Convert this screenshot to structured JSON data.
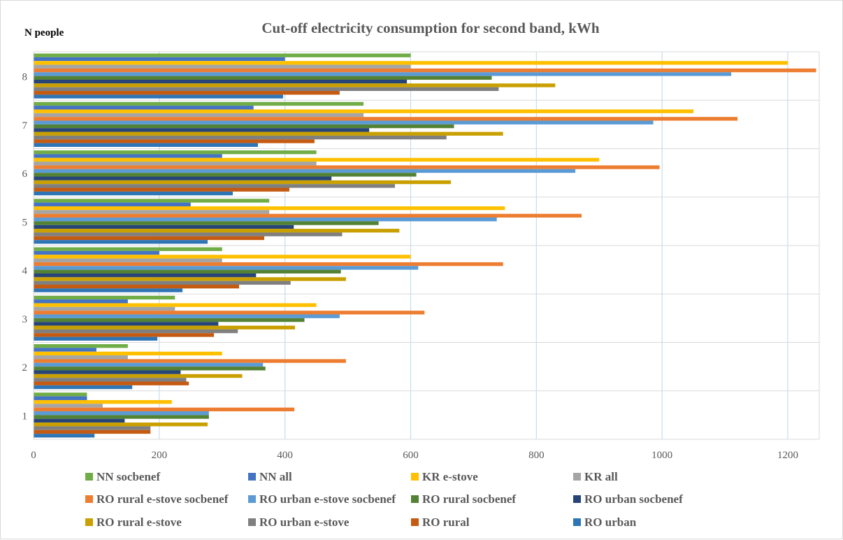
{
  "chart_data": {
    "type": "bar",
    "orientation": "horizontal",
    "title": "Cut-off electricity consumption for second band, kWh",
    "ylabel": "N people",
    "xlabel": "",
    "xlim": [
      0,
      1250
    ],
    "x_ticks": [
      0,
      200,
      400,
      600,
      800,
      1000,
      1200
    ],
    "categories": [
      "1",
      "2",
      "3",
      "4",
      "5",
      "6",
      "7",
      "8"
    ],
    "grid": "vertical",
    "legend_position": "bottom",
    "series": [
      {
        "name": "NN socbenef",
        "color": "#70ad47",
        "values": [
          85,
          150,
          225,
          300,
          375,
          450,
          525,
          600
        ]
      },
      {
        "name": "NN all",
        "color": "#4472c4",
        "values": [
          85,
          100,
          150,
          200,
          250,
          300,
          350,
          400
        ]
      },
      {
        "name": "KR e-stove",
        "color": "#ffc000",
        "values": [
          220,
          300,
          450,
          600,
          750,
          900,
          1050,
          1200
        ]
      },
      {
        "name": "KR all",
        "color": "#a5a5a5",
        "values": [
          110,
          150,
          225,
          300,
          375,
          450,
          525,
          600
        ]
      },
      {
        "name": "RO rural e-stove socbenef",
        "color": "#ed7d31",
        "values": [
          415,
          497,
          622,
          747,
          872,
          996,
          1120,
          1245
        ]
      },
      {
        "name": "RO urban e-stove socbenef",
        "color": "#5b9bd5",
        "values": [
          279,
          365,
          487,
          612,
          737,
          862,
          986,
          1110
        ]
      },
      {
        "name": "RO rural socbenef",
        "color": "#548235",
        "values": [
          279,
          369,
          431,
          489,
          549,
          609,
          669,
          729
        ]
      },
      {
        "name": "RO urban socbenef",
        "color": "#264478",
        "values": [
          145,
          234,
          294,
          354,
          414,
          474,
          534,
          594
        ]
      },
      {
        "name": "RO rural e-stove",
        "color": "#c9a000",
        "values": [
          277,
          332,
          416,
          497,
          582,
          664,
          747,
          830
        ]
      },
      {
        "name": "RO urban e-stove",
        "color": "#7f7f7f",
        "values": [
          186,
          243,
          325,
          409,
          491,
          575,
          657,
          740
        ]
      },
      {
        "name": "RO rural",
        "color": "#c55a11",
        "values": [
          186,
          247,
          287,
          327,
          367,
          407,
          447,
          487
        ]
      },
      {
        "name": "RO urban",
        "color": "#2e75b6",
        "values": [
          97,
          157,
          197,
          237,
          277,
          317,
          357,
          397
        ]
      }
    ]
  }
}
